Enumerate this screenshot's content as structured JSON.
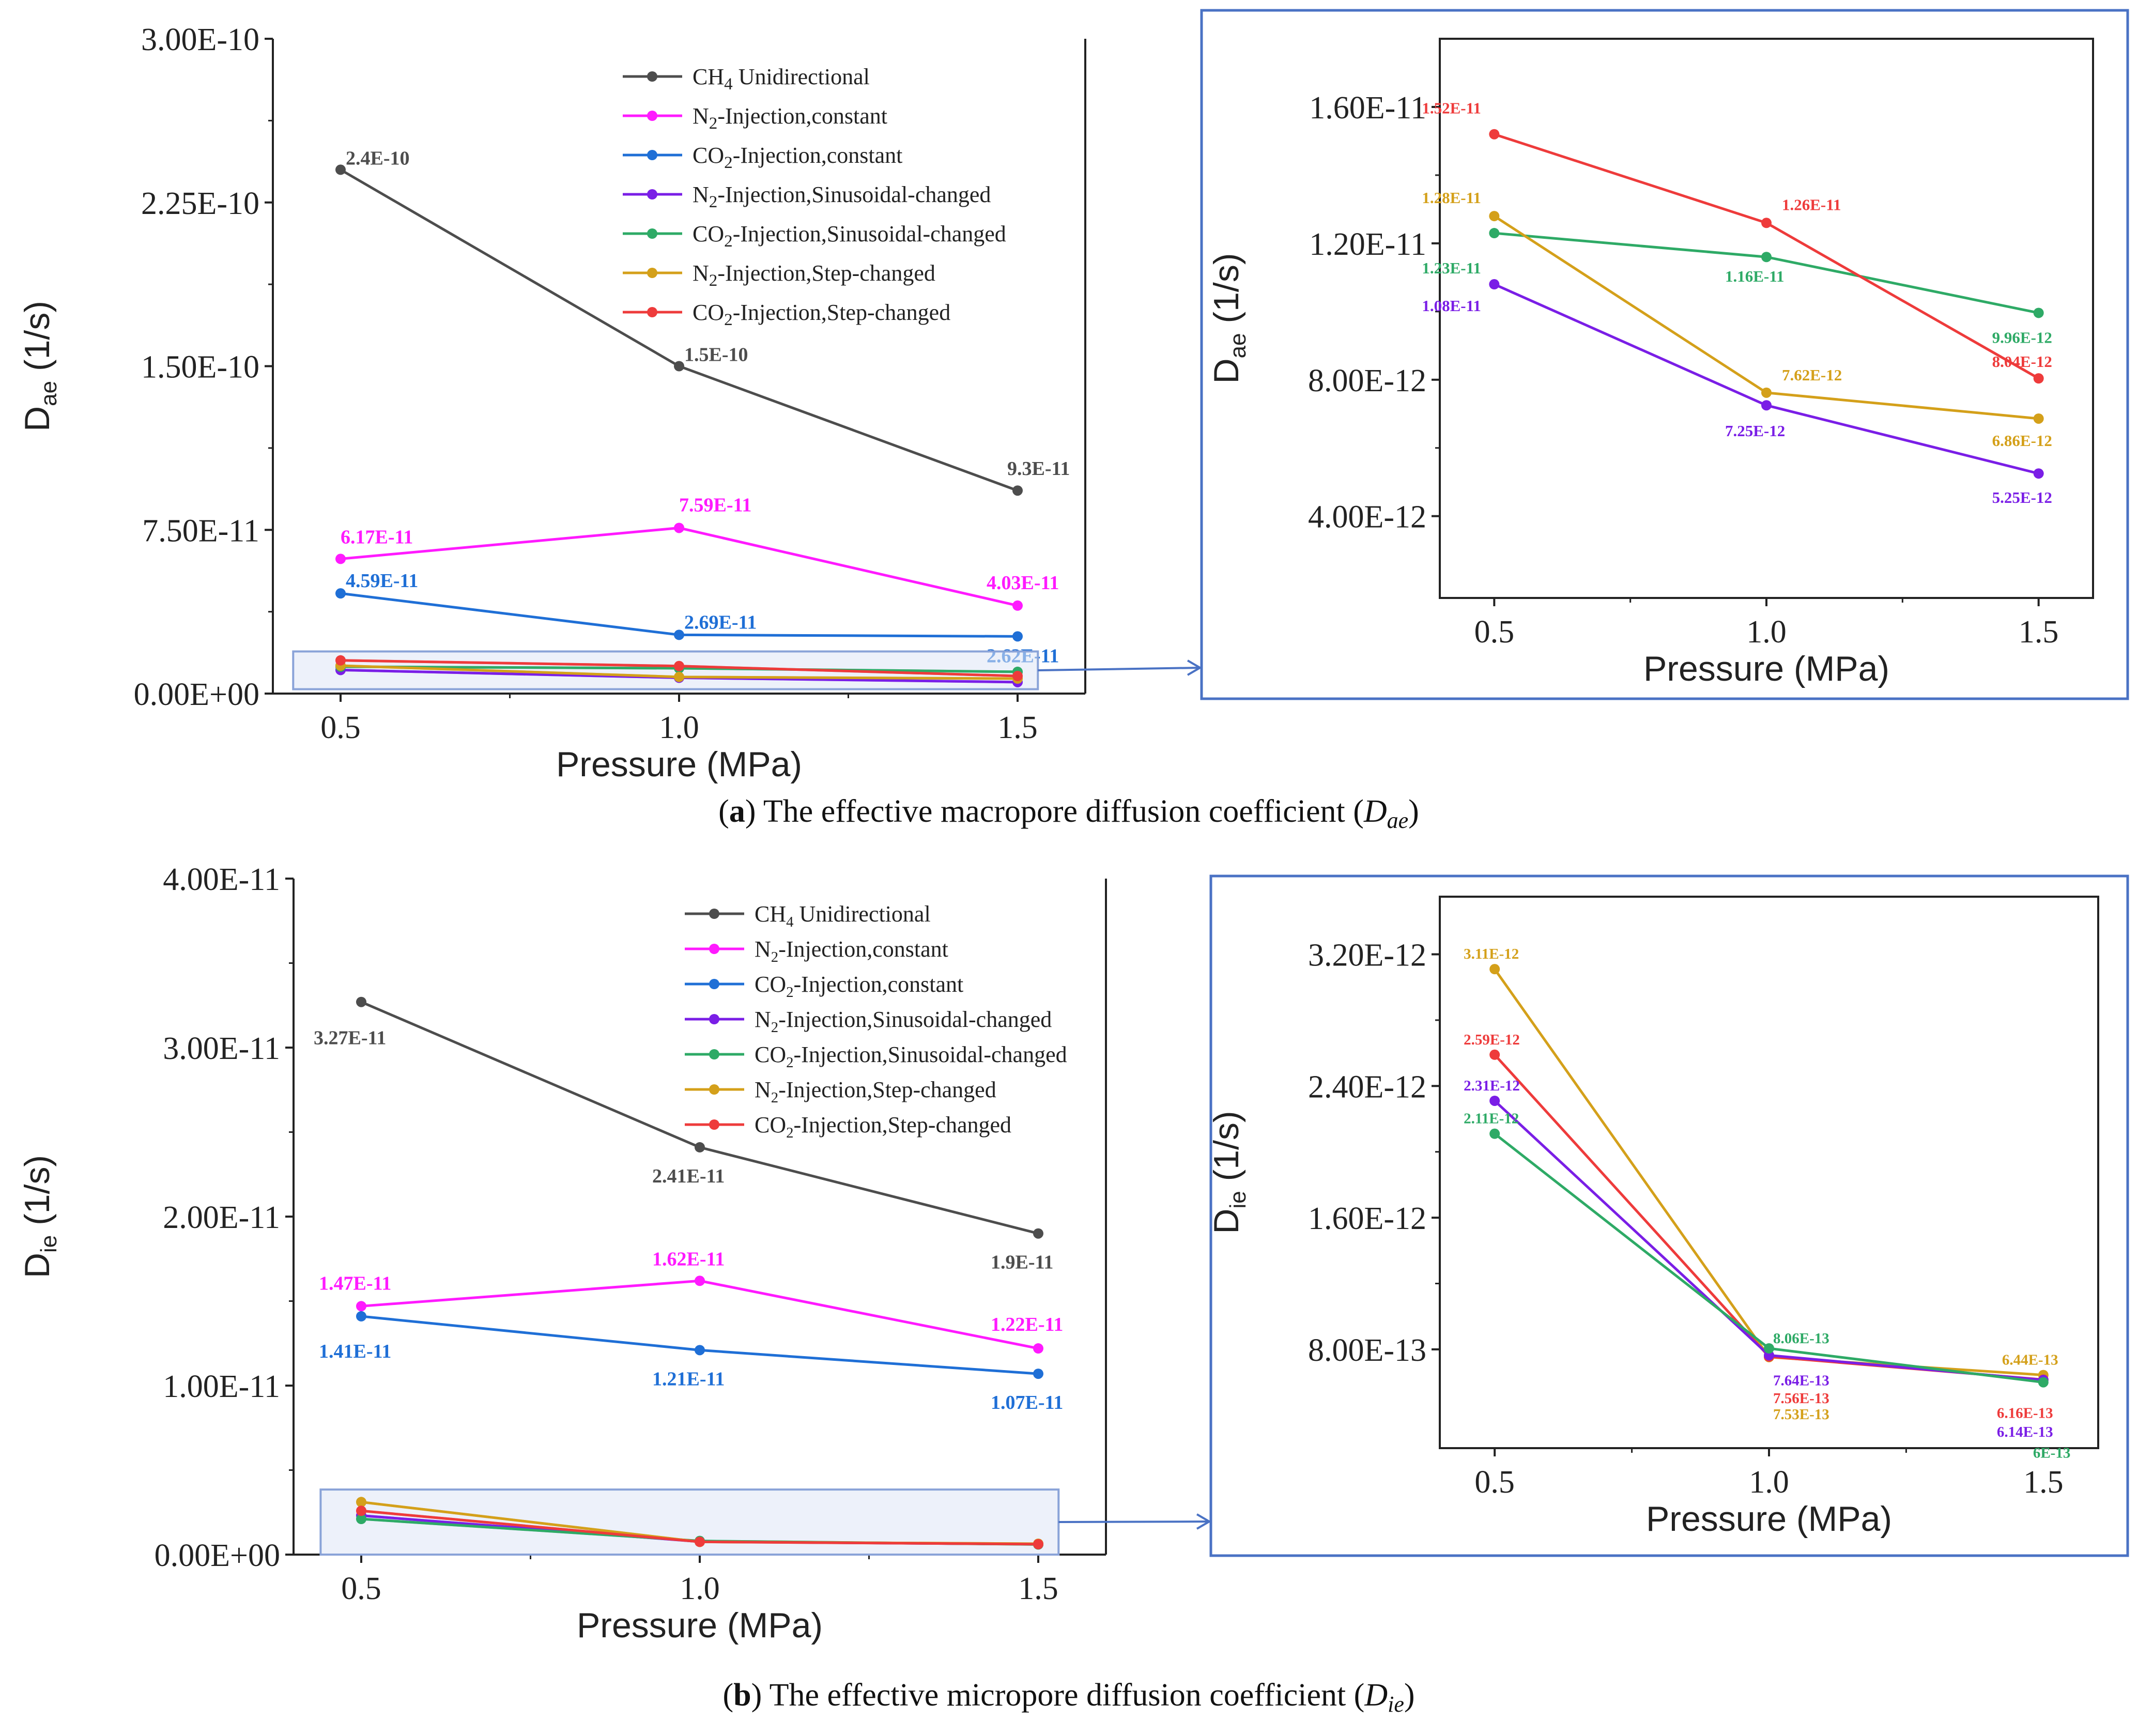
{
  "captions": [
    {
      "letter": "a",
      "text": "The effective macropore diffusion coefficient (",
      "sym": "D",
      "sub": "ae",
      "close": ")"
    },
    {
      "letter": "b",
      "text": "The effective micropore diffusion coefficient (",
      "sym": "D",
      "sub": "ie",
      "close": ")"
    }
  ],
  "legend": [
    {
      "pre": "CH",
      "sub": "4",
      "post": " Unidirectional",
      "color": "#4d4d4d"
    },
    {
      "pre": "N",
      "sub": "2",
      "post": "-Injection,constant",
      "color": "#ff1aff"
    },
    {
      "pre": "CO",
      "sub": "2",
      "post": "-Injection,constant",
      "color": "#1f6fd6"
    },
    {
      "pre": "N",
      "sub": "2",
      "post": "-Injection,Sinusoidal-changed",
      "color": "#7a1ee6"
    },
    {
      "pre": "CO",
      "sub": "2",
      "post": "-Injection,Sinusoidal-changed",
      "color": "#2eaa66"
    },
    {
      "pre": "N",
      "sub": "2",
      "post": "-Injection,Step-changed",
      "color": "#d4a01a"
    },
    {
      "pre": "CO",
      "sub": "2",
      "post": "-Injection,Step-changed",
      "color": "#ee3b3b"
    }
  ],
  "chart_data": [
    {
      "id": "a-main",
      "type": "line",
      "xlabel": "Pressure (MPa)",
      "ylabel": {
        "main": "D",
        "sub": "ae",
        "unit": " (1/s)"
      },
      "x": [
        0.5,
        1.0,
        1.5
      ],
      "xticks": [
        "0.5",
        "1.0",
        "1.5"
      ],
      "xlim": [
        0.4,
        1.6
      ],
      "ylim": [
        0,
        3e-10
      ],
      "yticks": [
        0,
        7.5e-11,
        1.5e-10,
        2.25e-10,
        3e-10
      ],
      "ytick_labels": [
        "0.00E+00",
        "7.50E-11",
        "1.50E-10",
        "2.25E-10",
        "3.00E-10"
      ],
      "series": [
        {
          "color": "#4d4d4d",
          "values": [
            2.4e-10,
            1.5e-10,
            9.3e-11
          ],
          "labels": [
            "2.4E-10",
            "1.5E-10",
            "9.3E-11"
          ]
        },
        {
          "color": "#ff1aff",
          "values": [
            6.17e-11,
            7.59e-11,
            4.03e-11
          ],
          "labels": [
            "6.17E-11",
            "7.59E-11",
            "4.03E-11"
          ]
        },
        {
          "color": "#1f6fd6",
          "values": [
            4.59e-11,
            2.69e-11,
            2.62e-11
          ],
          "labels": [
            "4.59E-11",
            "2.69E-11",
            "2.62E-11"
          ]
        },
        {
          "color": "#7a1ee6",
          "values": [
            1.08e-11,
            7.25e-12,
            5.25e-12
          ],
          "labels": []
        },
        {
          "color": "#2eaa66",
          "values": [
            1.23e-11,
            1.16e-11,
            9.96e-12
          ],
          "labels": []
        },
        {
          "color": "#d4a01a",
          "values": [
            1.28e-11,
            7.62e-12,
            6.86e-12
          ],
          "labels": []
        },
        {
          "color": "#ee3b3b",
          "values": [
            1.52e-11,
            1.26e-11,
            8.04e-12
          ],
          "labels": []
        }
      ]
    },
    {
      "id": "a-inset",
      "type": "line",
      "xlabel": "Pressure (MPa)",
      "ylabel": {
        "main": "D",
        "sub": "ae",
        "unit": " (1/s)"
      },
      "x": [
        0.5,
        1.0,
        1.5
      ],
      "xticks": [
        "0.5",
        "1.0",
        "1.5"
      ],
      "xlim": [
        0.4,
        1.6
      ],
      "ylim": [
        1.6e-12,
        1.8e-11
      ],
      "yticks": [
        4e-12,
        8e-12,
        1.2e-11,
        1.6e-11
      ],
      "ytick_labels": [
        "4.00E-12",
        "8.00E-12",
        "1.20E-11",
        "1.60E-11"
      ],
      "series": [
        {
          "color": "#7a1ee6",
          "values": [
            1.08e-11,
            7.25e-12,
            5.25e-12
          ],
          "labels": [
            "1.08E-11",
            "7.25E-12",
            "5.25E-12"
          ]
        },
        {
          "color": "#2eaa66",
          "values": [
            1.23e-11,
            1.16e-11,
            9.96e-12
          ],
          "labels": [
            "1.23E-11",
            "1.16E-11",
            "9.96E-12"
          ]
        },
        {
          "color": "#d4a01a",
          "values": [
            1.28e-11,
            7.62e-12,
            6.86e-12
          ],
          "labels": [
            "1.28E-11",
            "7.62E-12",
            "6.86E-12"
          ]
        },
        {
          "color": "#ee3b3b",
          "values": [
            1.52e-11,
            1.26e-11,
            8.04e-12
          ],
          "labels": [
            "1.52E-11",
            "1.26E-11",
            "8.04E-12"
          ]
        }
      ]
    },
    {
      "id": "b-main",
      "type": "line",
      "xlabel": "Pressure (MPa)",
      "ylabel": {
        "main": "D",
        "sub": "ie",
        "unit": " (1/s)"
      },
      "x": [
        0.5,
        1.0,
        1.5
      ],
      "xticks": [
        "0.5",
        "1.0",
        "1.5"
      ],
      "xlim": [
        0.4,
        1.6
      ],
      "ylim": [
        0,
        4e-11
      ],
      "yticks": [
        0,
        1e-11,
        2e-11,
        3e-11,
        4e-11
      ],
      "ytick_labels": [
        "0.00E+00",
        "1.00E-11",
        "2.00E-11",
        "3.00E-11",
        "4.00E-11"
      ],
      "series": [
        {
          "color": "#4d4d4d",
          "values": [
            3.27e-11,
            2.41e-11,
            1.9e-11
          ],
          "labels": [
            "3.27E-11",
            "2.41E-11",
            "1.9E-11"
          ]
        },
        {
          "color": "#ff1aff",
          "values": [
            1.47e-11,
            1.62e-11,
            1.22e-11
          ],
          "labels": [
            "1.47E-11",
            "1.62E-11",
            "1.22E-11"
          ]
        },
        {
          "color": "#1f6fd6",
          "values": [
            1.41e-11,
            1.21e-11,
            1.07e-11
          ],
          "labels": [
            "1.41E-11",
            "1.21E-11",
            "1.07E-11"
          ]
        },
        {
          "color": "#7a1ee6",
          "values": [
            2.31e-12,
            7.64e-13,
            6.14e-13
          ],
          "labels": []
        },
        {
          "color": "#2eaa66",
          "values": [
            2.11e-12,
            8.06e-13,
            6e-13
          ],
          "labels": []
        },
        {
          "color": "#d4a01a",
          "values": [
            3.11e-12,
            7.53e-13,
            6.44e-13
          ],
          "labels": []
        },
        {
          "color": "#ee3b3b",
          "values": [
            2.59e-12,
            7.56e-13,
            6.16e-13
          ],
          "labels": []
        }
      ]
    },
    {
      "id": "b-inset",
      "type": "line",
      "xlabel": "Pressure (MPa)",
      "ylabel": {
        "main": "D",
        "sub": "ie",
        "unit": " (1/s)"
      },
      "x": [
        0.5,
        1.0,
        1.5
      ],
      "xticks": [
        "0.5",
        "1.0",
        "1.5"
      ],
      "xlim": [
        0.4,
        1.6
      ],
      "ylim": [
        2e-13,
        3.55e-12
      ],
      "yticks": [
        8e-13,
        1.6e-12,
        2.4e-12,
        3.2e-12
      ],
      "ytick_labels": [
        "8.00E-13",
        "1.60E-12",
        "2.40E-12",
        "3.20E-12"
      ],
      "series": [
        {
          "color": "#d4a01a",
          "values": [
            3.11e-12,
            7.53e-13,
            6.44e-13
          ],
          "labels": [
            "3.11E-12",
            "7.53E-13",
            "6.44E-13"
          ]
        },
        {
          "color": "#ee3b3b",
          "values": [
            2.59e-12,
            7.56e-13,
            6.16e-13
          ],
          "labels": [
            "2.59E-12",
            "7.56E-13",
            "6.16E-13"
          ]
        },
        {
          "color": "#7a1ee6",
          "values": [
            2.31e-12,
            7.64e-13,
            6.14e-13
          ],
          "labels": [
            "2.31E-12",
            "7.64E-13",
            "6.14E-13"
          ]
        },
        {
          "color": "#2eaa66",
          "values": [
            2.11e-12,
            8.06e-13,
            6e-13
          ],
          "labels": [
            "2.11E-12",
            "8.06E-13",
            "6E-13"
          ]
        }
      ]
    }
  ]
}
